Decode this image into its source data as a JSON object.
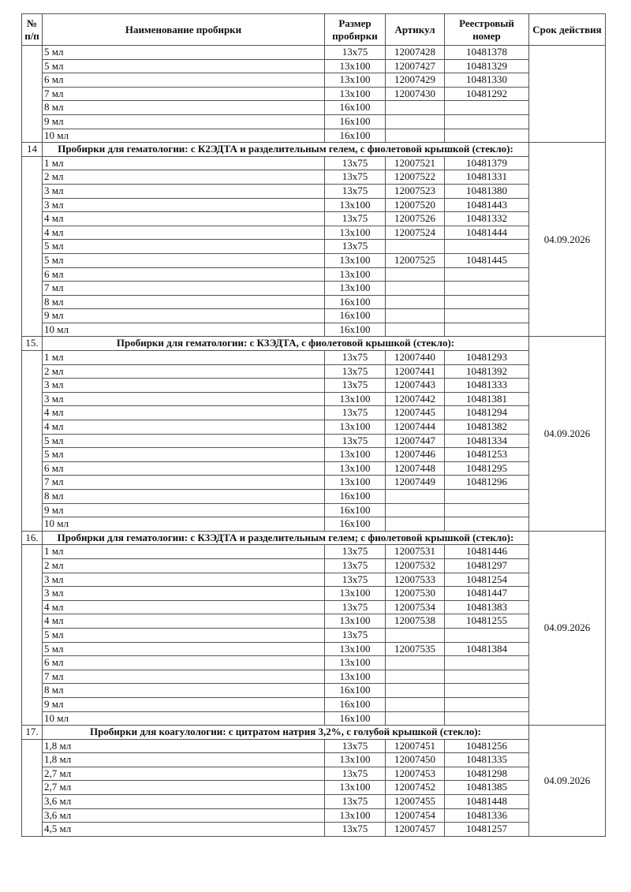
{
  "headers": {
    "num": "№ п/п",
    "name": "Наименование пробирки",
    "size": "Размер пробирки",
    "article": "Артикул",
    "registry": "Реестровый номер",
    "term": "Срок действия"
  },
  "groups": [
    {
      "number": "",
      "title": "",
      "term": "",
      "items": [
        {
          "name": "5 мл",
          "size": "13x75",
          "article": "12007428",
          "registry": "10481378"
        },
        {
          "name": "5 мл",
          "size": "13x100",
          "article": "12007427",
          "registry": "10481329"
        },
        {
          "name": "6 мл",
          "size": "13x100",
          "article": "12007429",
          "registry": "10481330"
        },
        {
          "name": "7 мл",
          "size": "13x100",
          "article": "12007430",
          "registry": "10481292"
        },
        {
          "name": "8 мл",
          "size": "16x100",
          "article": "",
          "registry": ""
        },
        {
          "name": "9 мл",
          "size": "16x100",
          "article": "",
          "registry": ""
        },
        {
          "name": "10 мл",
          "size": "16x100",
          "article": "",
          "registry": ""
        }
      ]
    },
    {
      "number": "14",
      "title": "Пробирки для гематологии: с К2ЭДТА и разделительным гелем, с фиолетовой крышкой (стекло):",
      "term": "04.09.2026",
      "items": [
        {
          "name": "1 мл",
          "size": "13x75",
          "article": "12007521",
          "registry": "10481379"
        },
        {
          "name": "2 мл",
          "size": "13x75",
          "article": "12007522",
          "registry": "10481331"
        },
        {
          "name": "3 мл",
          "size": "13x75",
          "article": "12007523",
          "registry": "10481380"
        },
        {
          "name": "3 мл",
          "size": "13x100",
          "article": "12007520",
          "registry": "10481443"
        },
        {
          "name": "4 мл",
          "size": "13x75",
          "article": "12007526",
          "registry": "10481332"
        },
        {
          "name": "4 мл",
          "size": "13x100",
          "article": "12007524",
          "registry": "10481444"
        },
        {
          "name": "5 мл",
          "size": "13x75",
          "article": "",
          "registry": ""
        },
        {
          "name": "5 мл",
          "size": "13x100",
          "article": "12007525",
          "registry": "10481445"
        },
        {
          "name": "6 мл",
          "size": "13x100",
          "article": "",
          "registry": ""
        },
        {
          "name": "7 мл",
          "size": "13x100",
          "article": "",
          "registry": ""
        },
        {
          "name": "8 мл",
          "size": "16x100",
          "article": "",
          "registry": ""
        },
        {
          "name": "9 мл",
          "size": "16x100",
          "article": "",
          "registry": ""
        },
        {
          "name": "10 мл",
          "size": "16x100",
          "article": "",
          "registry": ""
        }
      ]
    },
    {
      "number": "15.",
      "title": "Пробирки для гематологии: с К3ЭДТА, с фиолетовой крышкой (стекло):",
      "term": "04.09.2026",
      "items": [
        {
          "name": "1 мл",
          "size": "13x75",
          "article": "12007440",
          "registry": "10481293"
        },
        {
          "name": "2 мл",
          "size": "13x75",
          "article": "12007441",
          "registry": "10481392"
        },
        {
          "name": "3 мл",
          "size": "13x75",
          "article": "12007443",
          "registry": "10481333"
        },
        {
          "name": "3 мл",
          "size": "13x100",
          "article": "12007442",
          "registry": "10481381"
        },
        {
          "name": "4 мл",
          "size": "13x75",
          "article": "12007445",
          "registry": "10481294"
        },
        {
          "name": "4 мл",
          "size": "13x100",
          "article": "12007444",
          "registry": "10481382"
        },
        {
          "name": "5 мл",
          "size": "13x75",
          "article": "12007447",
          "registry": "10481334"
        },
        {
          "name": "5 мл",
          "size": "13x100",
          "article": "12007446",
          "registry": "10481253"
        },
        {
          "name": "6 мл",
          "size": "13x100",
          "article": "12007448",
          "registry": "10481295"
        },
        {
          "name": "7 мл",
          "size": "13x100",
          "article": "12007449",
          "registry": "10481296"
        },
        {
          "name": "8 мл",
          "size": "16x100",
          "article": "",
          "registry": ""
        },
        {
          "name": "9 мл",
          "size": "16x100",
          "article": "",
          "registry": ""
        },
        {
          "name": "10 мл",
          "size": "16x100",
          "article": "",
          "registry": ""
        }
      ]
    },
    {
      "number": "16.",
      "title": "Пробирки для гематологии: с К3ЭДТА и разделительным гелем; с фиолетовой крышкой (стекло):",
      "term": "04.09.2026",
      "items": [
        {
          "name": "1 мл",
          "size": "13x75",
          "article": "12007531",
          "registry": "10481446"
        },
        {
          "name": "2 мл",
          "size": "13x75",
          "article": "12007532",
          "registry": "10481297"
        },
        {
          "name": "3 мл",
          "size": "13x75",
          "article": "12007533",
          "registry": "10481254"
        },
        {
          "name": "3 мл",
          "size": "13x100",
          "article": "12007530",
          "registry": "10481447"
        },
        {
          "name": "4 мл",
          "size": "13x75",
          "article": "12007534",
          "registry": "10481383"
        },
        {
          "name": "4 мл",
          "size": "13x100",
          "article": "12007538",
          "registry": "10481255"
        },
        {
          "name": "5 мл",
          "size": "13x75",
          "article": "",
          "registry": ""
        },
        {
          "name": "5 мл",
          "size": "13x100",
          "article": "12007535",
          "registry": "10481384"
        },
        {
          "name": "6 мл",
          "size": "13x100",
          "article": "",
          "registry": ""
        },
        {
          "name": "7 мл",
          "size": "13x100",
          "article": "",
          "registry": ""
        },
        {
          "name": "8 мл",
          "size": "16x100",
          "article": "",
          "registry": ""
        },
        {
          "name": "9 мл",
          "size": "16x100",
          "article": "",
          "registry": ""
        },
        {
          "name": "10 мл",
          "size": "16x100",
          "article": "",
          "registry": ""
        }
      ]
    },
    {
      "number": "17.",
      "title": "Пробирки для коагулологии: с цитратом натрия 3,2%, с голубой крышкой (стекло):",
      "term": "04.09.2026",
      "items": [
        {
          "name": "1,8 мл",
          "size": "13x75",
          "article": "12007451",
          "registry": "10481256"
        },
        {
          "name": "1,8 мл",
          "size": "13x100",
          "article": "12007450",
          "registry": "10481335"
        },
        {
          "name": "2,7 мл",
          "size": "13x75",
          "article": "12007453",
          "registry": "10481298"
        },
        {
          "name": "2,7 мл",
          "size": "13x100",
          "article": "12007452",
          "registry": "10481385"
        },
        {
          "name": "3,6 мл",
          "size": "13x75",
          "article": "12007455",
          "registry": "10481448"
        },
        {
          "name": "3,6 мл",
          "size": "13x100",
          "article": "12007454",
          "registry": "10481336"
        },
        {
          "name": "4,5 мл",
          "size": "13x75",
          "article": "12007457",
          "registry": "10481257"
        }
      ]
    }
  ]
}
